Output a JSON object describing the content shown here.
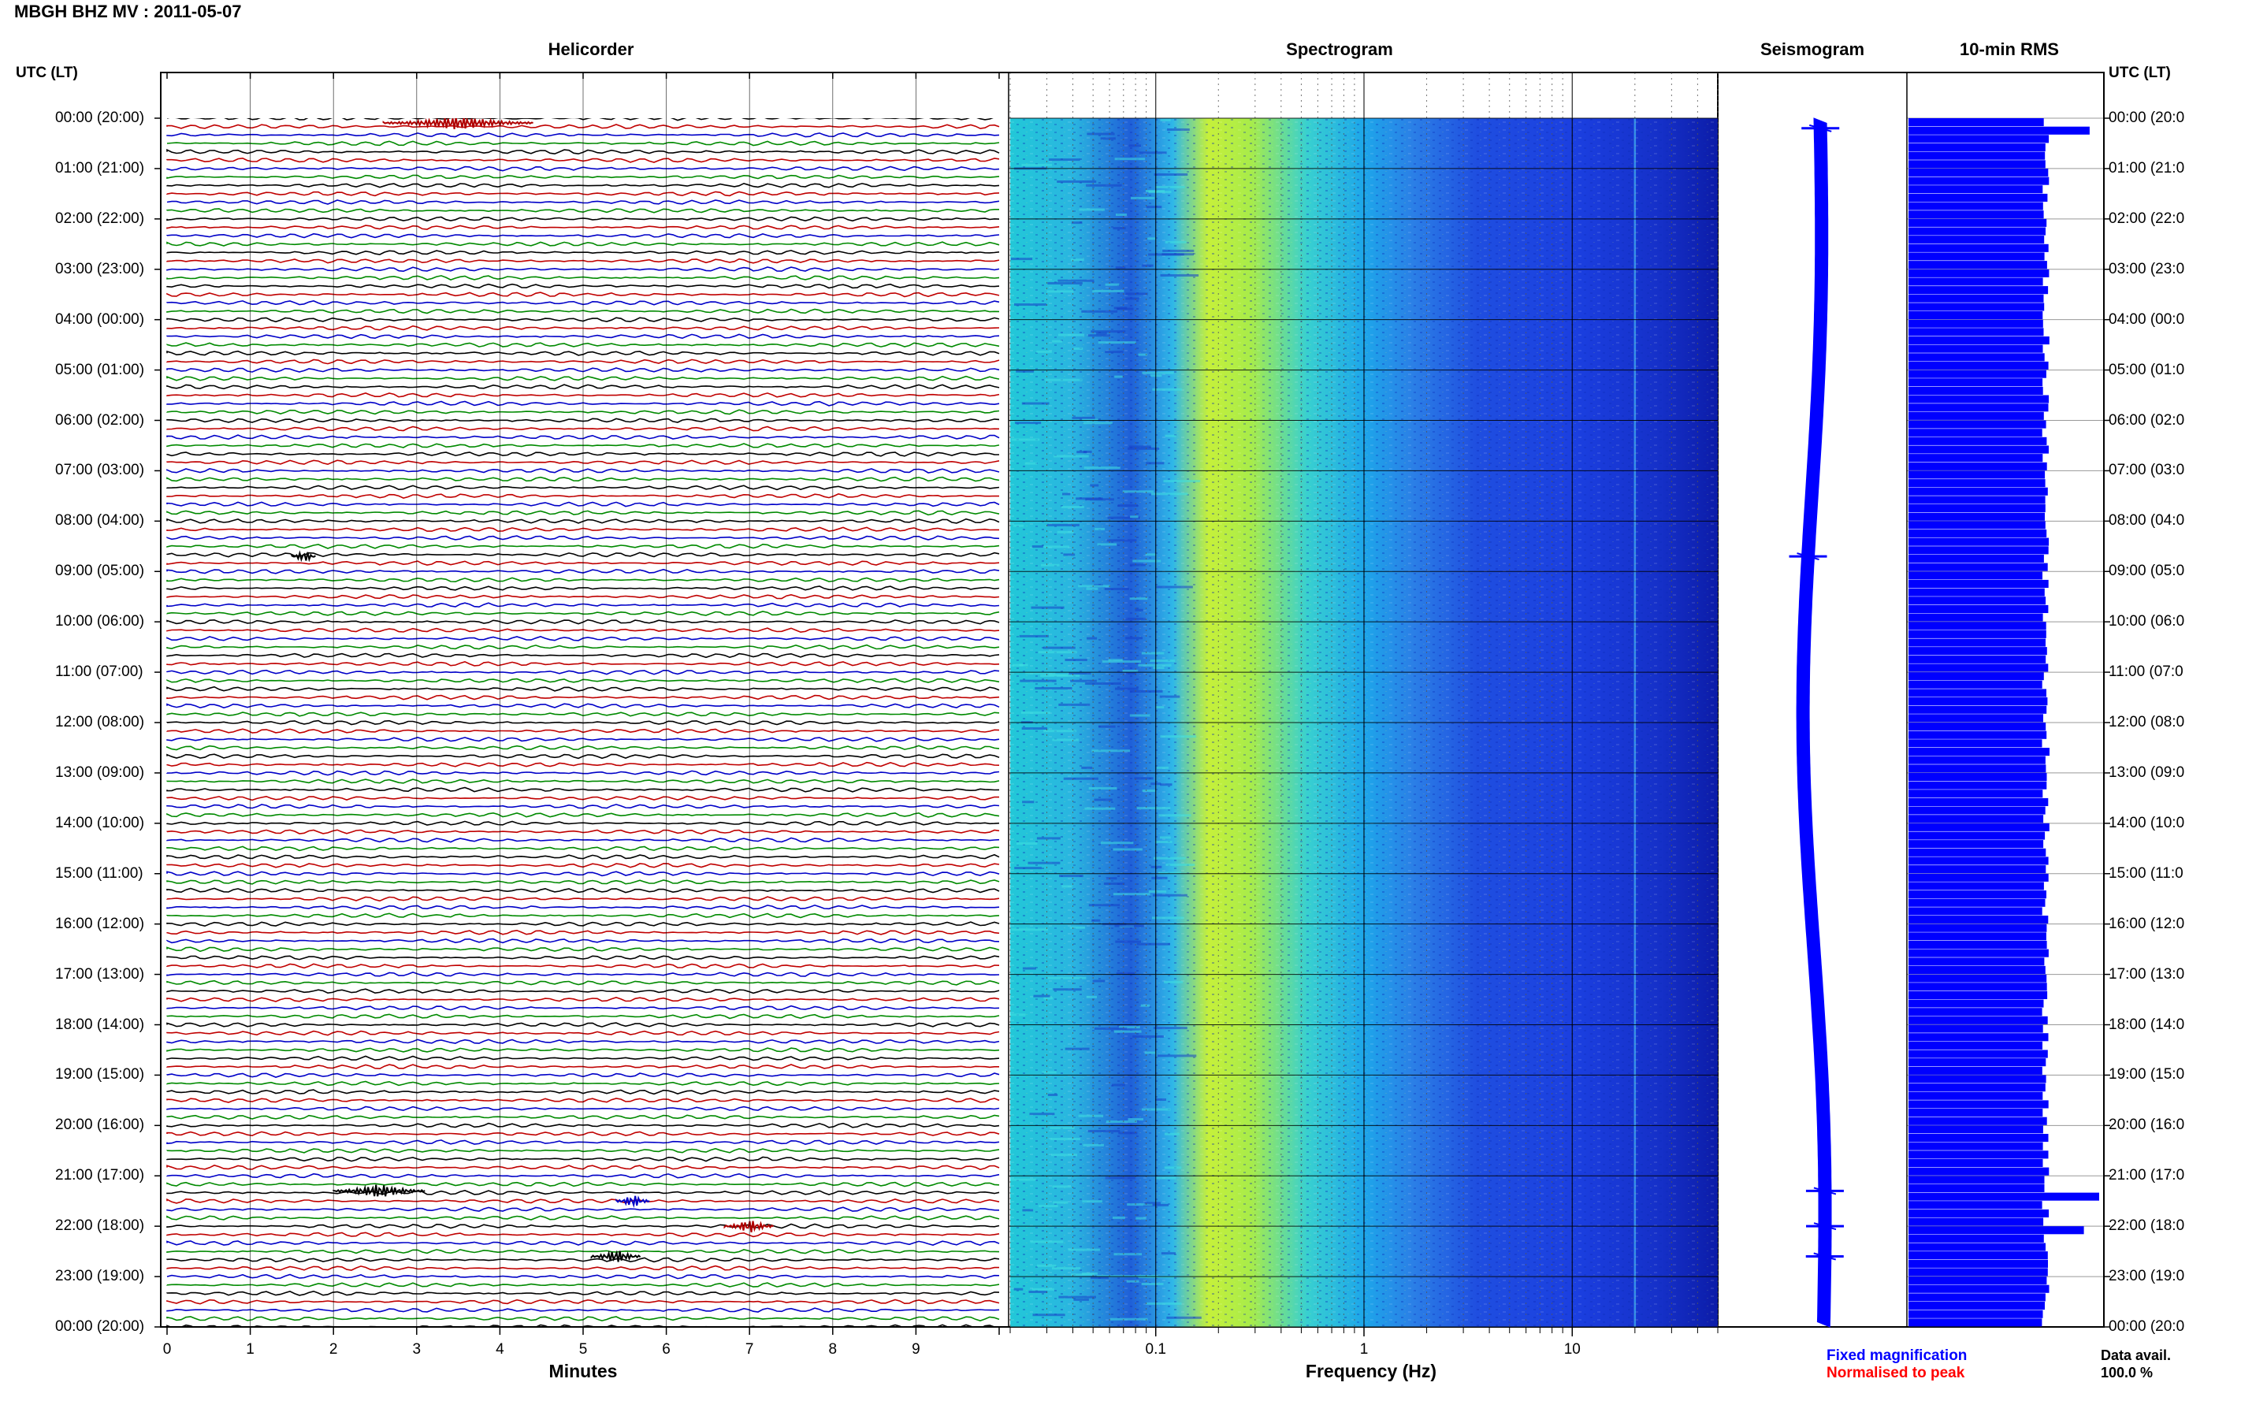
{
  "header": {
    "title": "MBGH BHZ MV : 2011-05-07",
    "panels": [
      "Helicorder",
      "Spectrogram",
      "Seismogram",
      "10-min RMS"
    ],
    "utc_head_left": "UTC (LT)",
    "utc_head_right": "UTC (LT)"
  },
  "axes": {
    "helicorder_xlabel": "Minutes",
    "spectrogram_xlabel": "Frequency (Hz)",
    "minute_ticks": [
      "0",
      "1",
      "2",
      "3",
      "4",
      "5",
      "6",
      "7",
      "8",
      "9"
    ],
    "freq_ticks": [
      "0.1",
      "1",
      "10"
    ]
  },
  "time_labels_left": [
    "00:00 (20:00)",
    "01:00 (21:00)",
    "02:00 (22:00)",
    "03:00 (23:00)",
    "04:00 (00:00)",
    "05:00 (01:00)",
    "06:00 (02:00)",
    "07:00 (03:00)",
    "08:00 (04:00)",
    "09:00 (05:00)",
    "10:00 (06:00)",
    "11:00 (07:00)",
    "12:00 (08:00)",
    "13:00 (09:00)",
    "14:00 (10:00)",
    "15:00 (11:00)",
    "16:00 (12:00)",
    "17:00 (13:00)",
    "18:00 (14:00)",
    "19:00 (15:00)",
    "20:00 (16:00)",
    "21:00 (17:00)",
    "22:00 (18:00)",
    "23:00 (19:00)",
    "00:00 (20:00)"
  ],
  "time_labels_right": [
    "00:00 (20:0",
    "01:00 (21:0",
    "02:00 (22:0",
    "03:00 (23:0",
    "04:00 (00:0",
    "05:00 (01:0",
    "06:00 (02:0",
    "07:00 (03:0",
    "08:00 (04:0",
    "09:00 (05:0",
    "10:00 (06:0",
    "11:00 (07:0",
    "12:00 (08:0",
    "13:00 (09:0",
    "14:00 (10:0",
    "15:00 (11:0",
    "16:00 (12:0",
    "17:00 (13:0",
    "18:00 (14:0",
    "19:00 (15:0",
    "20:00 (16:0",
    "21:00 (17:0",
    "22:00 (18:0",
    "23:00 (19:0",
    "00:00 (20:0"
  ],
  "legend": {
    "fixed": "Fixed magnification",
    "normalised": "Normalised to peak",
    "data_avail_label": "Data avail.",
    "data_avail_value": "100.0 %"
  },
  "colors": {
    "trace_cycle": [
      "#000000",
      "#c00000",
      "#0000c8",
      "#008a00"
    ],
    "event_red": "#b00000",
    "seismogram": "#0000ff",
    "rms": "#0000ff",
    "legend_fixed": "#0000ff",
    "legend_normalised": "#ff0000"
  },
  "chart_data": [
    {
      "type": "line",
      "panel": "Helicorder",
      "xlabel": "Minutes",
      "xlim": [
        0,
        10
      ],
      "ylim_hours_utc": [
        0,
        24
      ],
      "lines_per_hour": 6,
      "events": [
        {
          "hour": 0.0,
          "minute": 2.6,
          "duration_min": 1.8,
          "color": "red"
        },
        {
          "hour": 8.7,
          "minute": 1.5,
          "duration_min": 0.3,
          "color": "black"
        },
        {
          "hour": 21.3,
          "minute": 2.0,
          "duration_min": 1.1,
          "color": "black"
        },
        {
          "hour": 21.5,
          "minute": 5.4,
          "duration_min": 0.4,
          "color": "blue"
        },
        {
          "hour": 22.0,
          "minute": 6.7,
          "duration_min": 0.6,
          "color": "red"
        },
        {
          "hour": 22.6,
          "minute": 5.1,
          "duration_min": 0.6,
          "color": "black"
        }
      ]
    },
    {
      "type": "heatmap",
      "panel": "Spectrogram",
      "xlabel": "Frequency (Hz)",
      "xscale": "log",
      "xlim": [
        0.02,
        50
      ],
      "ylim_hours_utc": [
        0,
        24
      ],
      "peak_band_hz": [
        0.15,
        0.4
      ]
    },
    {
      "type": "line",
      "panel": "Seismogram",
      "ylim_hours_utc": [
        0,
        24
      ],
      "spikes_hours": [
        0.2,
        8.7,
        21.3,
        22.0,
        22.6
      ]
    },
    {
      "type": "bar",
      "panel": "10-min RMS",
      "ylim_hours_utc": [
        0,
        24
      ],
      "baseline": 0.72,
      "peaks": [
        {
          "hour": 0.2,
          "value": 0.95
        },
        {
          "hour": 21.3,
          "value": 1.0
        },
        {
          "hour": 22.0,
          "value": 0.92
        }
      ]
    }
  ]
}
